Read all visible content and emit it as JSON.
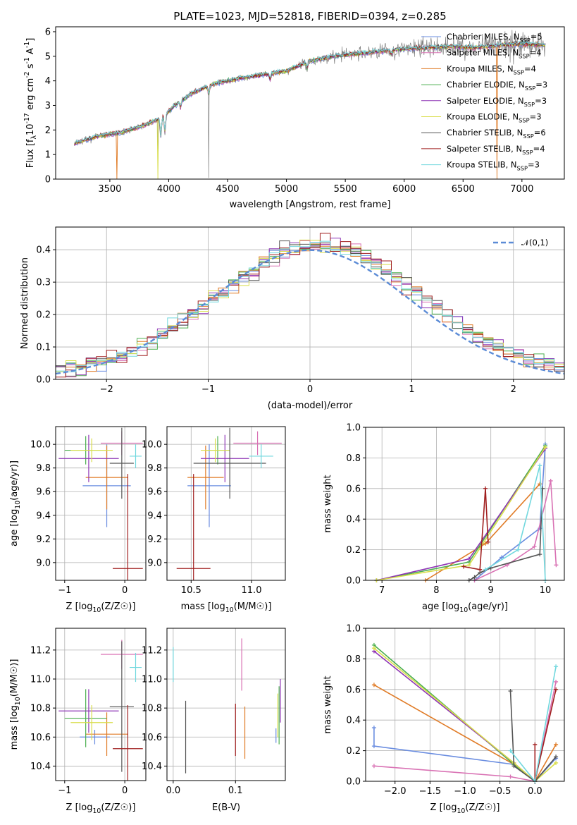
{
  "title": "PLATE=1023, MJD=52818, FIBERID=0394, z=0.285",
  "colors": {
    "Chabrier MILES": "#6a8de0",
    "Salpeter MILES": "#d972b4",
    "Kroupa MILES": "#e07b26",
    "Chabrier ELODIE": "#4caf50",
    "Salpeter ELODIE": "#8e35b5",
    "Kroupa ELODIE": "#d9de4b",
    "Chabrier STELIB": "#555555",
    "Salpeter STELIB": "#a01f1f",
    "Kroupa STELIB": "#72d8de",
    "data": "#808080"
  },
  "legend": [
    "Chabrier MILES, N$_{SSP}$=5",
    "Salpeter MILES, N$_{SSP}$=4",
    "Kroupa MILES, N$_{SSP}$=4",
    "Chabrier ELODIE, N$_{SSP}$=3",
    "Salpeter ELODIE, N$_{SSP}$=3",
    "Kroupa ELODIE, N$_{SSP}$=3",
    "Chabrier STELIB, N$_{SSP}$=6",
    "Salpeter STELIB, N$_{SSP}$=4",
    "Kroupa STELIB, N$_{SSP}$=3"
  ],
  "chart_data": [
    {
      "type": "line",
      "name": "spectrum",
      "xlabel": "wavelength [Angstrom, rest frame]",
      "ylabel": "Flux [f_λ10^-17 erg cm^-2 s^-1 A^-1]",
      "xlim": [
        3040,
        7360
      ],
      "ylim": [
        0,
        6.2
      ],
      "xticks": [
        3500,
        4000,
        4500,
        5000,
        5500,
        6000,
        6500,
        7000
      ],
      "yticks": [
        0,
        1,
        2,
        3,
        4,
        5,
        6
      ],
      "continuum": [
        [
          3200,
          1.45
        ],
        [
          3400,
          1.75
        ],
        [
          3600,
          1.9
        ],
        [
          3800,
          2.2
        ],
        [
          3950,
          2.5
        ],
        [
          4050,
          3.0
        ],
        [
          4200,
          3.5
        ],
        [
          4400,
          3.9
        ],
        [
          4600,
          4.1
        ],
        [
          4800,
          4.25
        ],
        [
          5000,
          4.4
        ],
        [
          5200,
          4.8
        ],
        [
          5400,
          5.0
        ],
        [
          5600,
          5.1
        ],
        [
          5800,
          5.2
        ],
        [
          6000,
          5.3
        ],
        [
          6200,
          5.35
        ],
        [
          6400,
          5.4
        ],
        [
          6600,
          5.35
        ],
        [
          6800,
          5.45
        ],
        [
          7000,
          5.5
        ],
        [
          7200,
          5.45
        ]
      ],
      "model_x_range": [
        3200,
        7200
      ],
      "data_x_range": [
        3200,
        7200
      ]
    },
    {
      "type": "step",
      "name": "normed residuals",
      "xlabel": "(data-model)/error",
      "ylabel": "Normed distribution",
      "xlim": [
        -2.5,
        2.5
      ],
      "ylim": [
        0,
        0.47
      ],
      "xticks": [
        -2,
        -1,
        0,
        1,
        2
      ],
      "yticks": [
        0.0,
        0.1,
        0.2,
        0.3,
        0.4
      ],
      "reference": "𝒩(0,1)",
      "bin_width": 0.1
    },
    {
      "type": "errorbar",
      "name": "age vs Z",
      "xlabel": "Z [log10(Z/Z☉)]",
      "ylabel": "age [log10(age/yr)]",
      "xlim": [
        -1.15,
        0.35
      ],
      "ylim": [
        8.85,
        10.15
      ],
      "xticks": [
        -1,
        0
      ],
      "yticks": [
        9.0,
        9.2,
        9.4,
        9.6,
        9.8,
        10.0
      ],
      "points": [
        {
          "s": "Chabrier MILES",
          "x": -0.3,
          "xe": 0.4,
          "y": 9.65,
          "ye": 0.35
        },
        {
          "s": "Salpeter MILES",
          "x": -0.05,
          "xe": 0.35,
          "y": 10.01,
          "ye": 0.1
        },
        {
          "s": "Kroupa MILES",
          "x": -0.3,
          "xe": 0.35,
          "y": 9.72,
          "ye": 0.27
        },
        {
          "s": "Chabrier ELODIE",
          "x": -0.65,
          "xe": 0.35,
          "y": 9.95,
          "ye": 0.12
        },
        {
          "s": "Salpeter ELODIE",
          "x": -0.6,
          "xe": 0.5,
          "y": 9.88,
          "ye": 0.2
        },
        {
          "s": "Kroupa ELODIE",
          "x": -0.55,
          "xe": 0.35,
          "y": 9.95,
          "ye": 0.1
        },
        {
          "s": "Chabrier STELIB",
          "x": -0.05,
          "xe": 0.2,
          "y": 9.84,
          "ye": 0.3
        },
        {
          "s": "Salpeter STELIB",
          "x": 0.05,
          "xe": 0.25,
          "y": 8.95,
          "ye": 0.8
        },
        {
          "s": "Kroupa STELIB",
          "x": 0.18,
          "xe": 0.1,
          "y": 9.9,
          "ye": 0.1
        }
      ]
    },
    {
      "type": "errorbar",
      "name": "age vs mass",
      "xlabel": "mass [log10(M/M☉)]",
      "ylabel": "",
      "xlim": [
        10.3,
        11.28
      ],
      "ylim": [
        8.85,
        10.15
      ],
      "xticks": [
        10.5,
        11.0
      ],
      "yticks": [
        9.0,
        9.2,
        9.4,
        9.6,
        9.8,
        10.0
      ],
      "points": [
        {
          "s": "Chabrier MILES",
          "x": 10.65,
          "xe": 0.18,
          "y": 9.65,
          "ye": 0.35
        },
        {
          "s": "Salpeter MILES",
          "x": 11.05,
          "xe": 0.2,
          "y": 10.01,
          "ye": 0.1
        },
        {
          "s": "Kroupa MILES",
          "x": 10.62,
          "xe": 0.15,
          "y": 9.72,
          "ye": 0.27
        },
        {
          "s": "Chabrier ELODIE",
          "x": 10.72,
          "xe": 0.1,
          "y": 9.95,
          "ye": 0.12
        },
        {
          "s": "Salpeter ELODIE",
          "x": 10.78,
          "xe": 0.2,
          "y": 9.88,
          "ye": 0.2
        },
        {
          "s": "Kroupa ELODIE",
          "x": 10.7,
          "xe": 0.12,
          "y": 9.95,
          "ye": 0.1
        },
        {
          "s": "Chabrier STELIB",
          "x": 10.82,
          "xe": 0.3,
          "y": 9.84,
          "ye": 0.3
        },
        {
          "s": "Salpeter STELIB",
          "x": 10.52,
          "xe": 0.14,
          "y": 8.95,
          "ye": 0.8
        },
        {
          "s": "Kroupa STELIB",
          "x": 11.08,
          "xe": 0.1,
          "y": 9.9,
          "ye": 0.1
        }
      ]
    },
    {
      "type": "line",
      "name": "mass weight vs age",
      "xlabel": "age [log10(age/yr)]",
      "ylabel": "mass weight",
      "xlim": [
        6.7,
        10.35
      ],
      "ylim": [
        0,
        1.0
      ],
      "xticks": [
        7,
        8,
        9,
        10
      ],
      "yticks": [
        0.0,
        0.2,
        0.4,
        0.6,
        0.8,
        1.0
      ],
      "series": [
        {
          "s": "Chabrier MILES",
          "pts": [
            [
              8.7,
              0.0
            ],
            [
              9.2,
              0.15
            ],
            [
              9.9,
              0.34
            ],
            [
              10.0,
              0.89
            ]
          ]
        },
        {
          "s": "Salpeter MILES",
          "pts": [
            [
              8.7,
              0.0
            ],
            [
              9.3,
              0.1
            ],
            [
              9.8,
              0.22
            ],
            [
              10.1,
              0.65
            ],
            [
              10.2,
              0.1
            ]
          ]
        },
        {
          "s": "Kroupa MILES",
          "pts": [
            [
              7.8,
              0.0
            ],
            [
              8.9,
              0.24
            ],
            [
              9.9,
              0.63
            ]
          ]
        },
        {
          "s": "Chabrier ELODIE",
          "pts": [
            [
              6.9,
              0.0
            ],
            [
              8.6,
              0.12
            ],
            [
              10.0,
              0.88
            ]
          ]
        },
        {
          "s": "Salpeter ELODIE",
          "pts": [
            [
              6.9,
              0.0
            ],
            [
              8.6,
              0.14
            ],
            [
              10.0,
              0.86
            ]
          ]
        },
        {
          "s": "Kroupa ELODIE",
          "pts": [
            [
              6.9,
              0.0
            ],
            [
              8.6,
              0.1
            ],
            [
              10.0,
              0.87
            ]
          ]
        },
        {
          "s": "Chabrier STELIB",
          "pts": [
            [
              8.6,
              0.0
            ],
            [
              8.7,
              0.02
            ],
            [
              8.8,
              0.05
            ],
            [
              9.0,
              0.08
            ],
            [
              9.9,
              0.17
            ],
            [
              9.95,
              0.6
            ]
          ]
        },
        {
          "s": "Salpeter STELIB",
          "pts": [
            [
              8.5,
              0.09
            ],
            [
              8.8,
              0.07
            ],
            [
              8.9,
              0.6
            ],
            [
              8.95,
              0.25
            ]
          ]
        },
        {
          "s": "Kroupa STELIB",
          "pts": [
            [
              8.9,
              0.07
            ],
            [
              9.5,
              0.2
            ],
            [
              9.9,
              0.75
            ],
            [
              10.0,
              0.0
            ]
          ]
        }
      ]
    },
    {
      "type": "errorbar",
      "name": "mass vs Z",
      "xlabel": "Z [log10(Z/Z☉)]",
      "ylabel": "mass [log10(M/M☉)]",
      "xlim": [
        -1.15,
        0.35
      ],
      "ylim": [
        10.3,
        11.35
      ],
      "xticks": [
        -1,
        0
      ],
      "yticks": [
        10.4,
        10.6,
        10.8,
        11.0,
        11.2
      ],
      "points": [
        {
          "s": "Chabrier MILES",
          "x": -0.5,
          "xe": 0.25,
          "y": 10.6,
          "ye": 0.05
        },
        {
          "s": "Salpeter MILES",
          "x": -0.05,
          "xe": 0.35,
          "y": 11.17,
          "ye": 0.1
        },
        {
          "s": "Kroupa MILES",
          "x": -0.3,
          "xe": 0.35,
          "y": 10.62,
          "ye": 0.15
        },
        {
          "s": "Chabrier ELODIE",
          "x": -0.65,
          "xe": 0.35,
          "y": 10.73,
          "ye": 0.2
        },
        {
          "s": "Salpeter ELODIE",
          "x": -0.6,
          "xe": 0.5,
          "y": 10.78,
          "ye": 0.15
        },
        {
          "s": "Kroupa ELODIE",
          "x": -0.55,
          "xe": 0.35,
          "y": 10.7,
          "ye": 0.12
        },
        {
          "s": "Chabrier STELIB",
          "x": -0.05,
          "xe": 0.2,
          "y": 10.81,
          "ye": 0.45
        },
        {
          "s": "Salpeter STELIB",
          "x": 0.05,
          "xe": 0.25,
          "y": 10.52,
          "ye": 0.3
        },
        {
          "s": "Kroupa STELIB",
          "x": 0.18,
          "xe": 0.1,
          "y": 11.08,
          "ye": 0.1
        }
      ]
    },
    {
      "type": "errorbar",
      "name": "mass vs E(B-V)",
      "xlabel": "E(B-V)",
      "ylabel": "",
      "xlim": [
        -0.01,
        0.18
      ],
      "ylim": [
        10.3,
        11.35
      ],
      "xticks": [
        0.0,
        0.1
      ],
      "yticks": [
        10.4,
        10.6,
        10.8,
        11.0,
        11.2
      ],
      "points": [
        {
          "s": "Chabrier MILES",
          "x": 0.165,
          "xe": 0,
          "y": 10.61,
          "ye": 0.05
        },
        {
          "s": "Salpeter MILES",
          "x": 0.11,
          "xe": 0,
          "y": 11.1,
          "ye": 0.18
        },
        {
          "s": "Kroupa MILES",
          "x": 0.115,
          "xe": 0,
          "y": 10.63,
          "ye": 0.18
        },
        {
          "s": "Chabrier ELODIE",
          "x": 0.17,
          "xe": 0,
          "y": 10.75,
          "ye": 0.2
        },
        {
          "s": "Salpeter ELODIE",
          "x": 0.172,
          "xe": 0,
          "y": 10.85,
          "ye": 0.15
        },
        {
          "s": "Kroupa ELODIE",
          "x": 0.168,
          "xe": 0,
          "y": 10.75,
          "ye": 0.15
        },
        {
          "s": "Chabrier STELIB",
          "x": 0.02,
          "xe": 0,
          "y": 10.6,
          "ye": 0.25
        },
        {
          "s": "Salpeter STELIB",
          "x": 0.1,
          "xe": 0,
          "y": 10.65,
          "ye": 0.18
        },
        {
          "s": "Kroupa STELIB",
          "x": 0.0,
          "xe": 0,
          "y": 11.1,
          "ye": 0.12
        }
      ]
    },
    {
      "type": "line",
      "name": "mass weight vs Z",
      "xlabel": "Z [log10(Z/Z☉)]",
      "ylabel": "mass weight",
      "xlim": [
        -2.42,
        0.42
      ],
      "ylim": [
        0,
        1.0
      ],
      "xticks": [
        -2.0,
        -1.5,
        -1.0,
        -0.5,
        0.0
      ],
      "yticks": [
        0.0,
        0.2,
        0.4,
        0.6,
        0.8,
        1.0
      ],
      "series": [
        {
          "s": "Chabrier MILES",
          "pts": [
            [
              -2.3,
              0.35
            ],
            [
              -2.3,
              0.23
            ],
            [
              -0.3,
              0.11
            ],
            [
              0.0,
              0.0
            ],
            [
              0.3,
              0.15
            ]
          ]
        },
        {
          "s": "Salpeter MILES",
          "pts": [
            [
              -2.3,
              0.1
            ],
            [
              -0.35,
              0.03
            ],
            [
              0.0,
              0.0
            ],
            [
              0.3,
              0.65
            ]
          ]
        },
        {
          "s": "Kroupa MILES",
          "pts": [
            [
              -2.3,
              0.63
            ],
            [
              -0.3,
              0.11
            ],
            [
              0.0,
              0.0
            ],
            [
              0.3,
              0.24
            ]
          ]
        },
        {
          "s": "Chabrier ELODIE",
          "pts": [
            [
              -2.3,
              0.89
            ],
            [
              -0.3,
              0.11
            ],
            [
              0.0,
              0.0
            ]
          ]
        },
        {
          "s": "Salpeter ELODIE",
          "pts": [
            [
              -2.3,
              0.85
            ],
            [
              -0.3,
              0.12
            ],
            [
              0.0,
              0.0
            ]
          ]
        },
        {
          "s": "Kroupa ELODIE",
          "pts": [
            [
              -2.3,
              0.87
            ],
            [
              -0.3,
              0.12
            ],
            [
              0.0,
              0.0
            ],
            [
              0.3,
              0.12
            ]
          ]
        },
        {
          "s": "Chabrier STELIB",
          "pts": [
            [
              -0.35,
              0.59
            ],
            [
              -0.3,
              0.1
            ],
            [
              0.0,
              0.0
            ],
            [
              0.3,
              0.16
            ]
          ]
        },
        {
          "s": "Salpeter STELIB",
          "pts": [
            [
              0.0,
              0.24
            ],
            [
              0.0,
              0.0
            ],
            [
              0.3,
              0.6
            ]
          ]
        },
        {
          "s": "Kroupa STELIB",
          "pts": [
            [
              -0.35,
              0.2
            ],
            [
              0.0,
              0.0
            ],
            [
              0.3,
              0.75
            ]
          ]
        }
      ]
    }
  ]
}
